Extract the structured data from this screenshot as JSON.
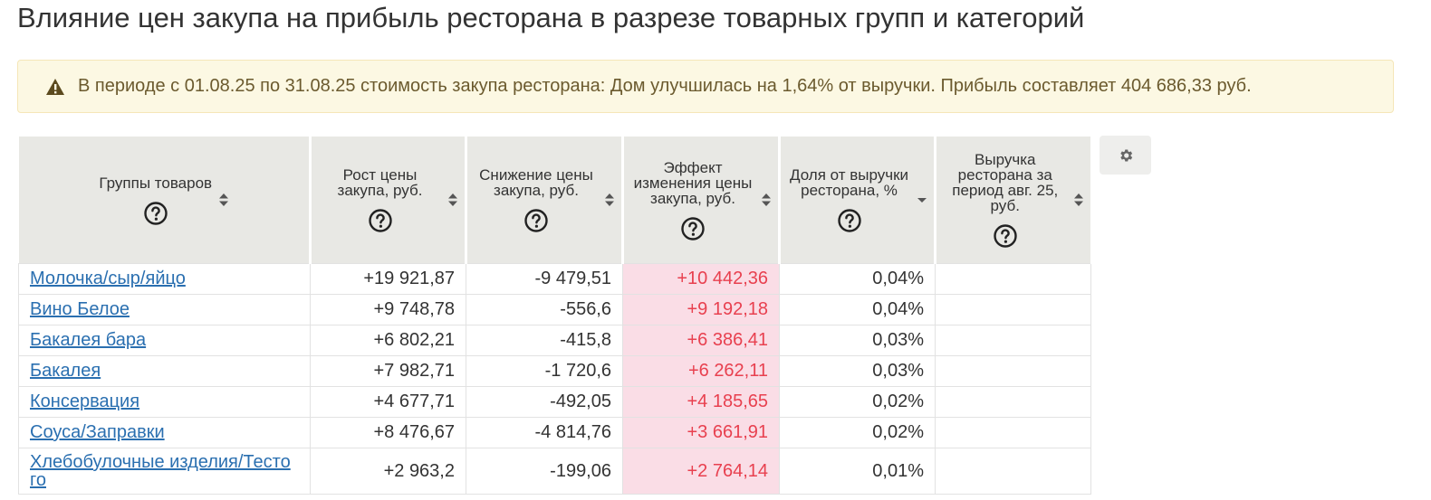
{
  "page": {
    "title": "Влияние цен закупа на прибыль ресторана в разрезе товарных групп и категорий"
  },
  "alert": {
    "icon": "warning-icon",
    "text": "В периоде с 01.08.25 по 31.08.25 стоимость закупа ресторана: Дом улучшилась на 1,64% от выручки. Прибыль составляет 404 686,33 руб."
  },
  "table": {
    "columns": [
      {
        "label": "Группы товаров",
        "sort": "both"
      },
      {
        "label": "Рост цены закупа, руб.",
        "sort": "both"
      },
      {
        "label": "Снижение цены закупа, руб.",
        "sort": "both"
      },
      {
        "label": "Эффект изменения цены закупа, руб.",
        "sort": "both"
      },
      {
        "label": "Доля от выручки ресторана, %",
        "sort": "desc"
      },
      {
        "label": "Выручка ресторана за период авг. 25, руб.",
        "sort": "both"
      }
    ],
    "rows": [
      {
        "name": "Молочка/сыр/яйцо",
        "growth": "+19 921,87",
        "decline": "-9 479,51",
        "effect": "+10 442,36",
        "share": "0,04%",
        "revenue": ""
      },
      {
        "name": "Вино Белое",
        "growth": "+9 748,78",
        "decline": "-556,6",
        "effect": "+9 192,18",
        "share": "0,04%",
        "revenue": ""
      },
      {
        "name": "Бакалея бара",
        "growth": "+6 802,21",
        "decline": "-415,8",
        "effect": "+6 386,41",
        "share": "0,03%",
        "revenue": ""
      },
      {
        "name": "Бакалея",
        "growth": "+7 982,71",
        "decline": "-1 720,6",
        "effect": "+6 262,11",
        "share": "0,03%",
        "revenue": ""
      },
      {
        "name": "Консервация",
        "growth": "+4 677,71",
        "decline": "-492,05",
        "effect": "+4 185,65",
        "share": "0,02%",
        "revenue": ""
      },
      {
        "name": "Соуса/Заправки",
        "growth": "+8 476,67",
        "decline": "-4 814,76",
        "effect": "+3 661,91",
        "share": "0,02%",
        "revenue": ""
      },
      {
        "name": "Хлебобулочные изделия/Тесто го",
        "growth": "+2 963,2",
        "decline": "-199,06",
        "effect": "+2 764,14",
        "share": "0,01%",
        "revenue": ""
      }
    ]
  },
  "toolbar": {
    "settings_icon": "gear-icon"
  },
  "colors": {
    "header_bg": "#e8e8e4",
    "effect_bg": "#fadde6",
    "effect_text": "#e8404f",
    "link": "#2a6fb0",
    "alert_bg": "#fcf8e3"
  }
}
